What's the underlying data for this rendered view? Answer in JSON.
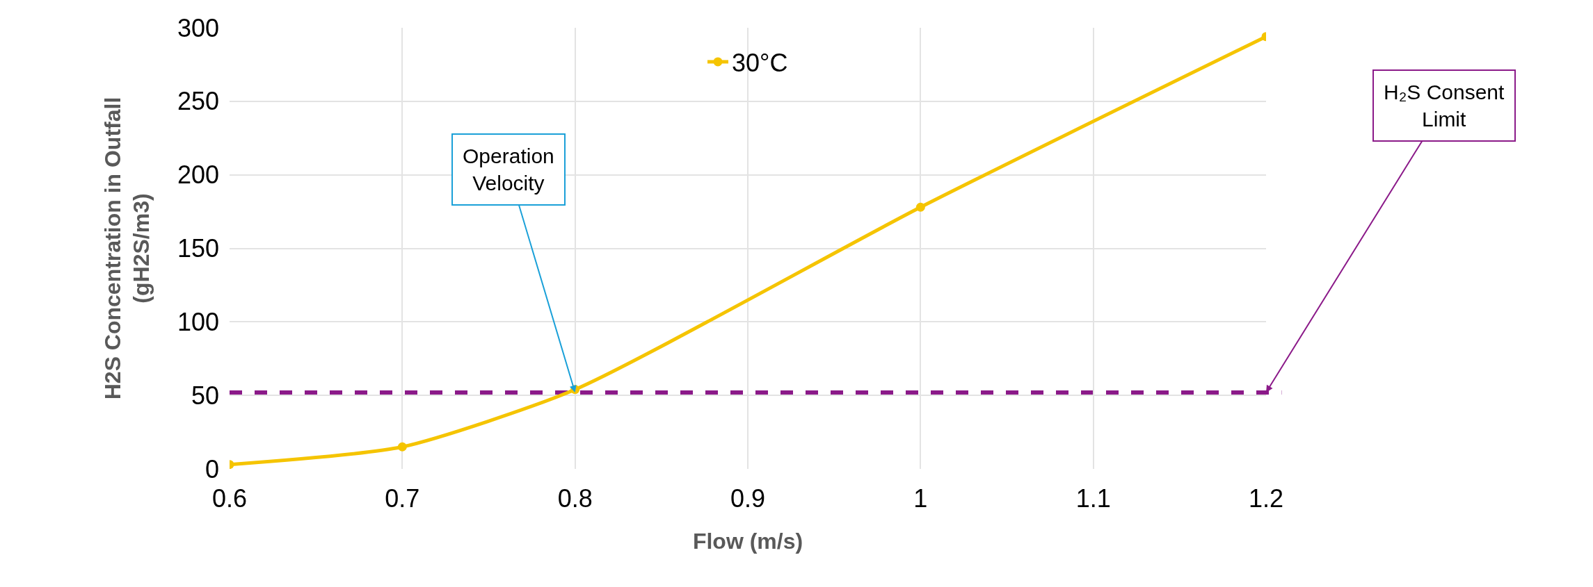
{
  "chart_data": {
    "type": "line",
    "xlabel": "Flow (m/s)",
    "ylabel": "H2S Concentration in Outfall\n(gH2S/m3)",
    "x": [
      0.6,
      0.7,
      0.8,
      1,
      1.2
    ],
    "series": [
      {
        "name": "30°C",
        "color": "#f5c400",
        "values": [
          3,
          15,
          54,
          178,
          294
        ]
      }
    ],
    "xlim": [
      0.6,
      1.2
    ],
    "xticks": [
      0.6,
      0.7,
      0.8,
      0.9,
      1,
      1.1,
      1.2
    ],
    "ylim": [
      0,
      300
    ],
    "yticks": [
      0,
      50,
      100,
      150,
      200,
      250,
      300
    ],
    "ref_lines": [
      {
        "axis": "y",
        "value": 52,
        "color": "#8b1a89",
        "line_style": "dashed"
      }
    ],
    "annotations": [
      {
        "text": "Operation\nVelocity",
        "x": 0.8,
        "y": 52
      },
      {
        "text": "H₂S Consent\nLimit",
        "x": 1.2,
        "y": 52
      }
    ],
    "grid": true,
    "legend": "top",
    "marker": "circle",
    "line_style": "solid"
  }
}
